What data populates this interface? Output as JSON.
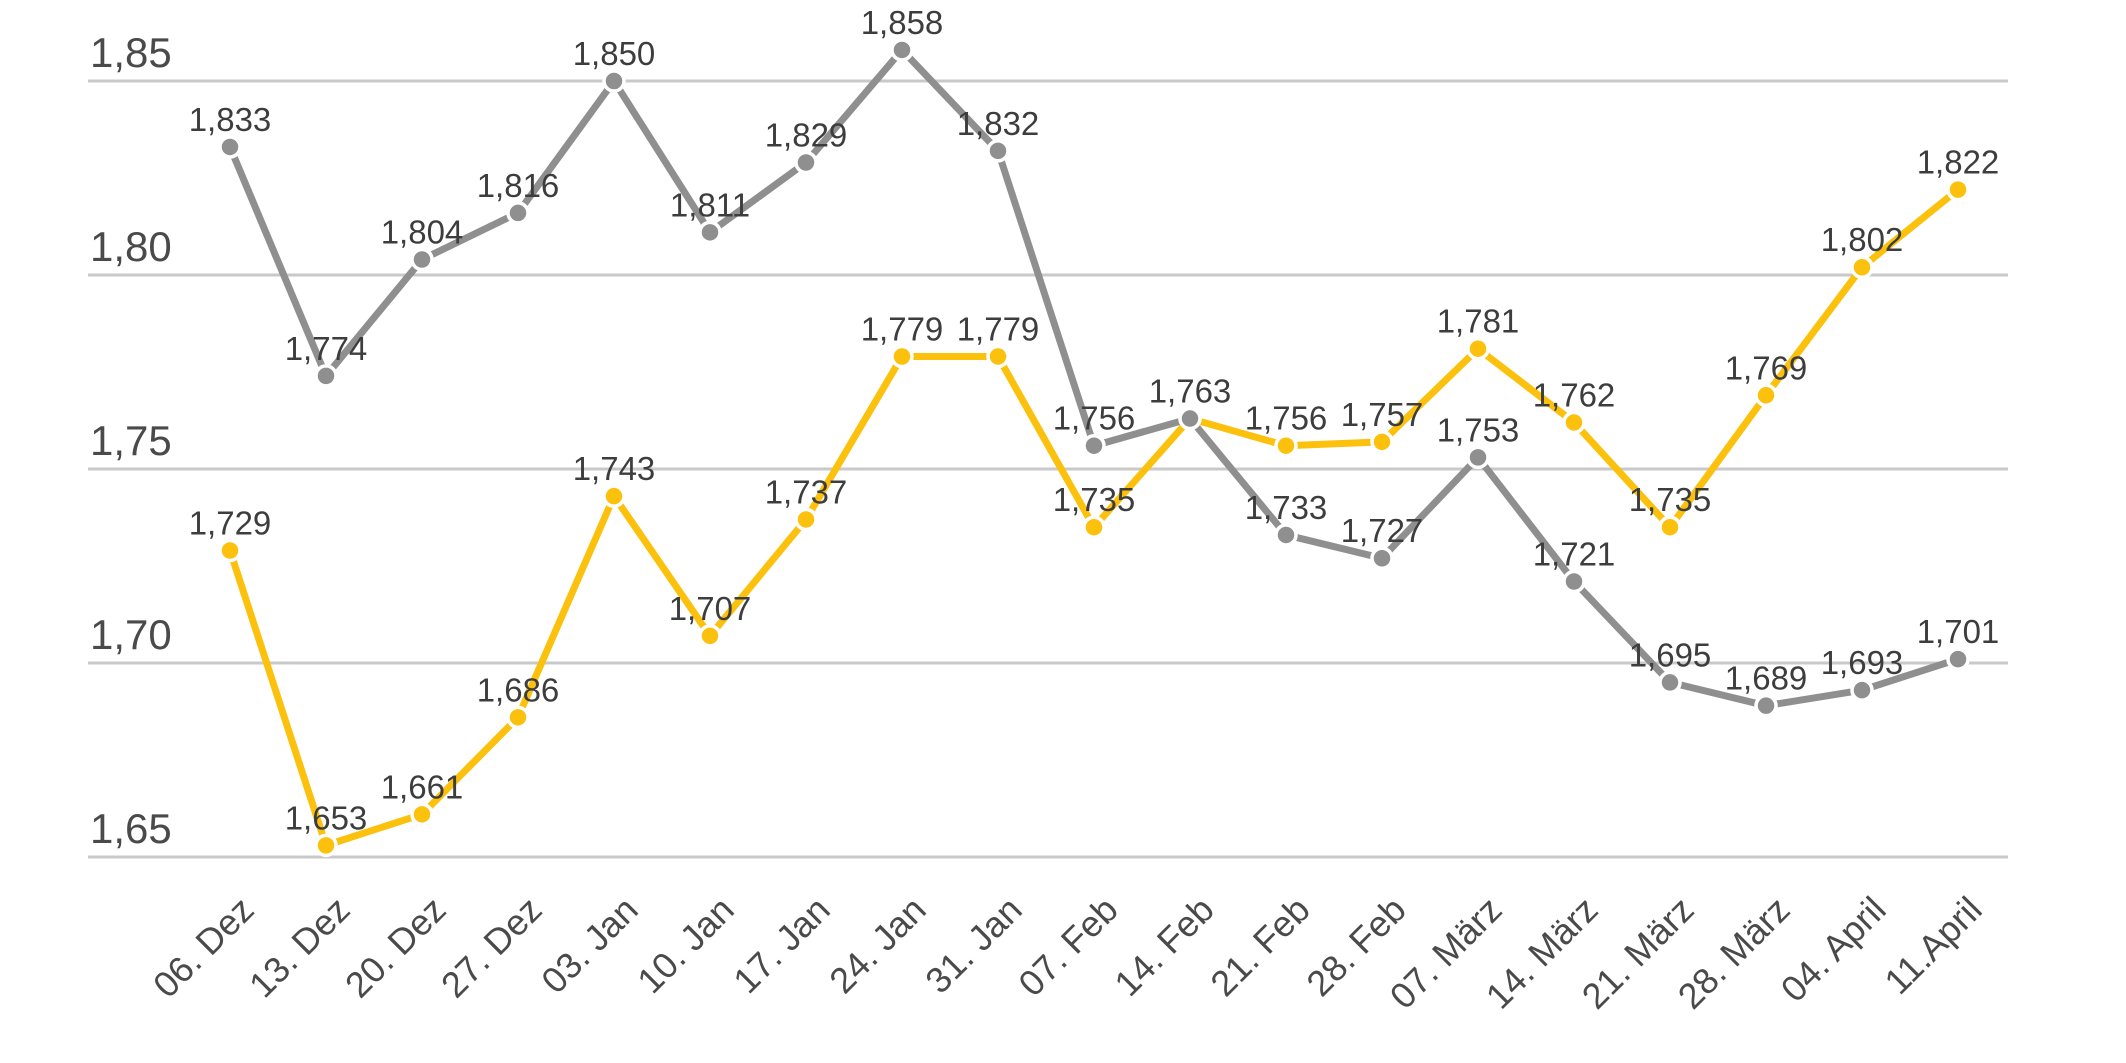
{
  "chart_data": {
    "type": "line",
    "title": "",
    "categories": [
      "06. Dez",
      "13. Dez",
      "20. Dez",
      "27. Dez",
      "03. Jan",
      "10. Jan",
      "17. Jan",
      "24. Jan",
      "31. Jan",
      "07. Feb",
      "14. Feb",
      "21. Feb",
      "28. Feb",
      "07. März",
      "14. März",
      "21. März",
      "28. März",
      "04. April",
      "11.April"
    ],
    "series": [
      {
        "name": "yellow-series",
        "color": "#FCC10D",
        "values": [
          1.729,
          1.653,
          1.661,
          1.686,
          1.743,
          1.707,
          1.737,
          1.779,
          1.779,
          1.735,
          1.763,
          1.756,
          1.757,
          1.781,
          1.762,
          1.735,
          1.769,
          1.802,
          1.822
        ],
        "data_labels": [
          "1,729",
          "1,653",
          "1,661",
          "1,686",
          "1,743",
          "1,707",
          "1,737",
          "1,779",
          "1,779",
          "1,735",
          "",
          "1,756",
          "1,757",
          "1,781",
          "1,762",
          "1,735",
          "1,769",
          "1,802",
          "1,822"
        ]
      },
      {
        "name": "gray-series",
        "color": "#8F8F8F",
        "values": [
          1.833,
          1.774,
          1.804,
          1.816,
          1.85,
          1.811,
          1.829,
          1.858,
          1.832,
          1.756,
          1.763,
          1.733,
          1.727,
          1.753,
          1.721,
          1.695,
          1.689,
          1.693,
          1.701
        ],
        "data_labels": [
          "1,833",
          "1,774",
          "1,804",
          "1,816",
          "1,850",
          "1,811",
          "1,829",
          "1,858",
          "1,832",
          "1,756",
          "1,763",
          "1,733",
          "1,727",
          "1,753",
          "1,721",
          "1,695",
          "1,689",
          "1,693",
          "1,701"
        ]
      }
    ],
    "y_axis": {
      "tick_values": [
        1.85,
        1.8,
        1.75,
        1.7,
        1.65
      ],
      "tick_labels": [
        "1,85",
        "1,80",
        "1,75",
        "1,70",
        "1,65"
      ],
      "min": 1.65,
      "max": 1.85,
      "grid": true
    },
    "x_axis": {
      "label_rotation_deg": -45
    },
    "legend": "none",
    "decimal_separator": ","
  },
  "style": {
    "background": "#FFFFFF",
    "gridline_color": "#C9C9C9",
    "data_label_color": "#3D3D3D",
    "axis_label_color": "#4A4A4A",
    "marker_outline_color": "#FFFFFF"
  }
}
